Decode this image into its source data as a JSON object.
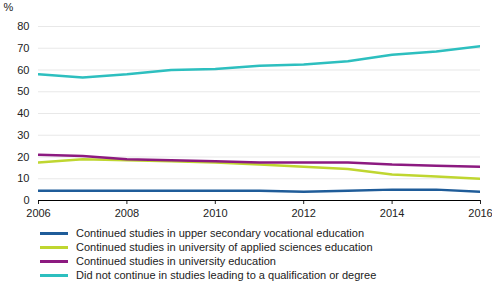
{
  "chart_data": {
    "type": "line",
    "ylabel": "%",
    "x": [
      2006,
      2007,
      2008,
      2009,
      2010,
      2011,
      2012,
      2013,
      2014,
      2015,
      2016
    ],
    "series": [
      {
        "name": "Continued studies in upper secondary vocational education",
        "color": "#1f5c99",
        "values": [
          4.5,
          4.5,
          4.5,
          4.5,
          4.5,
          4.5,
          4,
          4.5,
          5,
          5,
          4
        ]
      },
      {
        "name": "Continued studies in university of applied sciences education",
        "color": "#bfd630",
        "values": [
          17.5,
          19,
          18.5,
          18,
          17.5,
          16.5,
          15.5,
          14.5,
          12,
          11,
          10
        ]
      },
      {
        "name": "Continued studies in university education",
        "color": "#8c1a80",
        "values": [
          21,
          20.5,
          19,
          18.5,
          18,
          17.5,
          17.5,
          17.5,
          16.5,
          16,
          15.5
        ]
      },
      {
        "name": "Did not continue in studies leading to a qualification or degree",
        "color": "#2dbfbf",
        "values": [
          58,
          56.5,
          58,
          60,
          60.5,
          62,
          62.5,
          64,
          67,
          68.5,
          71
        ]
      }
    ],
    "xlim": [
      2006,
      2016
    ],
    "xticks": [
      2006,
      2008,
      2010,
      2012,
      2014,
      2016
    ],
    "ylim": [
      0,
      80
    ],
    "yticks": [
      0,
      10,
      20,
      30,
      40,
      50,
      60,
      70,
      80
    ],
    "grid": true,
    "legend": "bottom"
  }
}
